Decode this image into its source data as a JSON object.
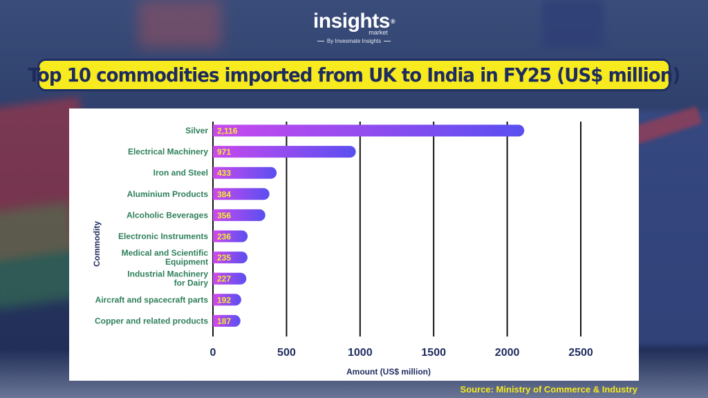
{
  "brand": {
    "name": "insights",
    "sub": "market",
    "tagline": "By Invesmate Insights",
    "reg": "®"
  },
  "title": "Top 10 commodities imported from UK to India in FY25 (US$ million)",
  "source": "Source: Ministry of Commerce & Industry",
  "colors": {
    "banner": "#f7ea1f",
    "banner_border": "#1f2e63",
    "title_text": "#1e2b5e",
    "bar_start": "#c749ee",
    "bar_end": "#5a4ff0",
    "value_label": "#f5ea35",
    "category_label": "#2e7f5a",
    "axis_text": "#1e2b5e",
    "grid": "#111111"
  },
  "chart_data": {
    "type": "bar",
    "orientation": "horizontal",
    "categories": [
      "Silver",
      "Electrical Machinery",
      "Iron and Steel",
      "Aluminium Products",
      "Alcoholic Beverages",
      "Electronic Instruments",
      "Medical and Scientific Equipment",
      "Industrial Machinery for Dairy",
      "Aircraft and spacecraft parts",
      "Copper and related products"
    ],
    "category_lines": [
      [
        "Silver"
      ],
      [
        "Electrical Machinery"
      ],
      [
        "Iron and Steel"
      ],
      [
        "Aluminium Products"
      ],
      [
        "Alcoholic Beverages"
      ],
      [
        "Electronic Instruments"
      ],
      [
        "Medical and Scientific",
        "Equipment"
      ],
      [
        "Industrial Machinery",
        "for Dairy"
      ],
      [
        "Aircraft and spacecraft parts"
      ],
      [
        "Copper and related products"
      ]
    ],
    "values": [
      2116,
      971,
      433,
      384,
      356,
      236,
      235,
      227,
      192,
      187
    ],
    "value_labels": [
      "2,116",
      "971",
      "433",
      "384",
      "356",
      "236",
      "235",
      "227",
      "192",
      "187"
    ],
    "xlabel": "Amount (US$ million)",
    "ylabel": "Commodity",
    "xticks": [
      0,
      500,
      1000,
      1500,
      2000,
      2500
    ],
    "xlim": [
      0,
      2500
    ],
    "grid": true
  }
}
